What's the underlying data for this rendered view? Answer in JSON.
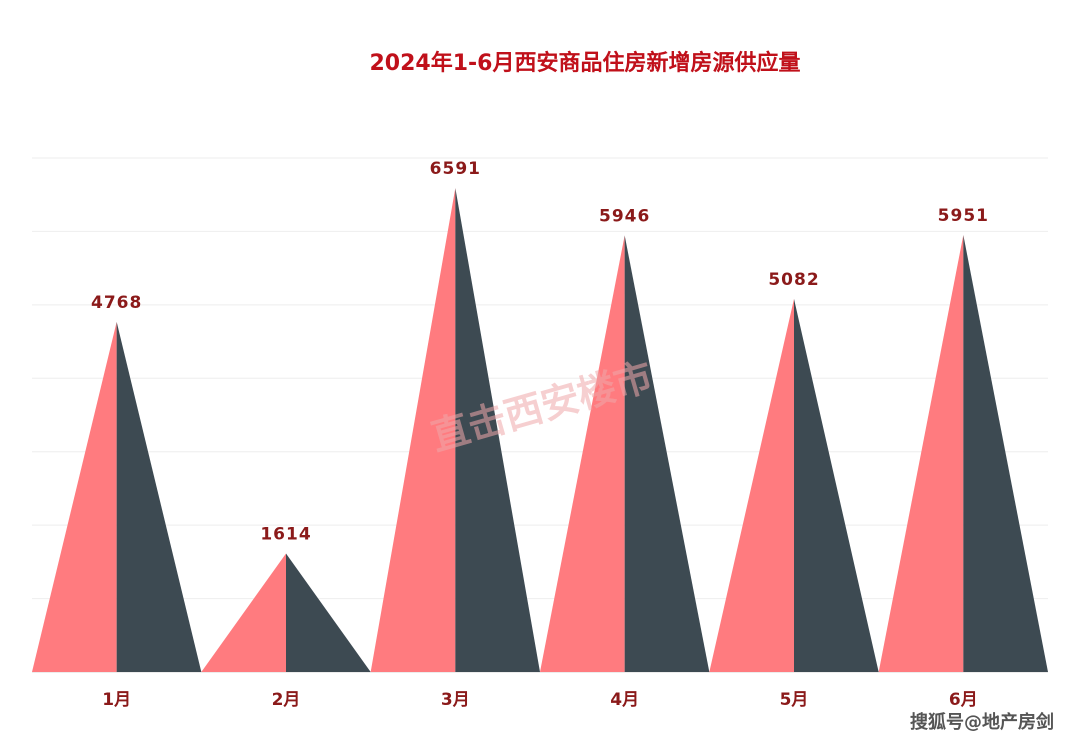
{
  "chart_data": {
    "type": "bar",
    "title": "2024年1-6月西安商品住房新增房源供应量",
    "categories": [
      "1月",
      "2月",
      "3月",
      "4月",
      "5月",
      "6月"
    ],
    "values": [
      4768,
      1614,
      6591,
      5946,
      5082,
      5951
    ],
    "ylim": [
      0,
      7000
    ],
    "grid": true,
    "colors": {
      "left": "#ff7b7f",
      "right": "#3d4a52",
      "label": "#8b1a1a",
      "title": "#c0101a"
    }
  },
  "watermark": "直击西安楼市",
  "credit": "搜狐号@地产房剑"
}
